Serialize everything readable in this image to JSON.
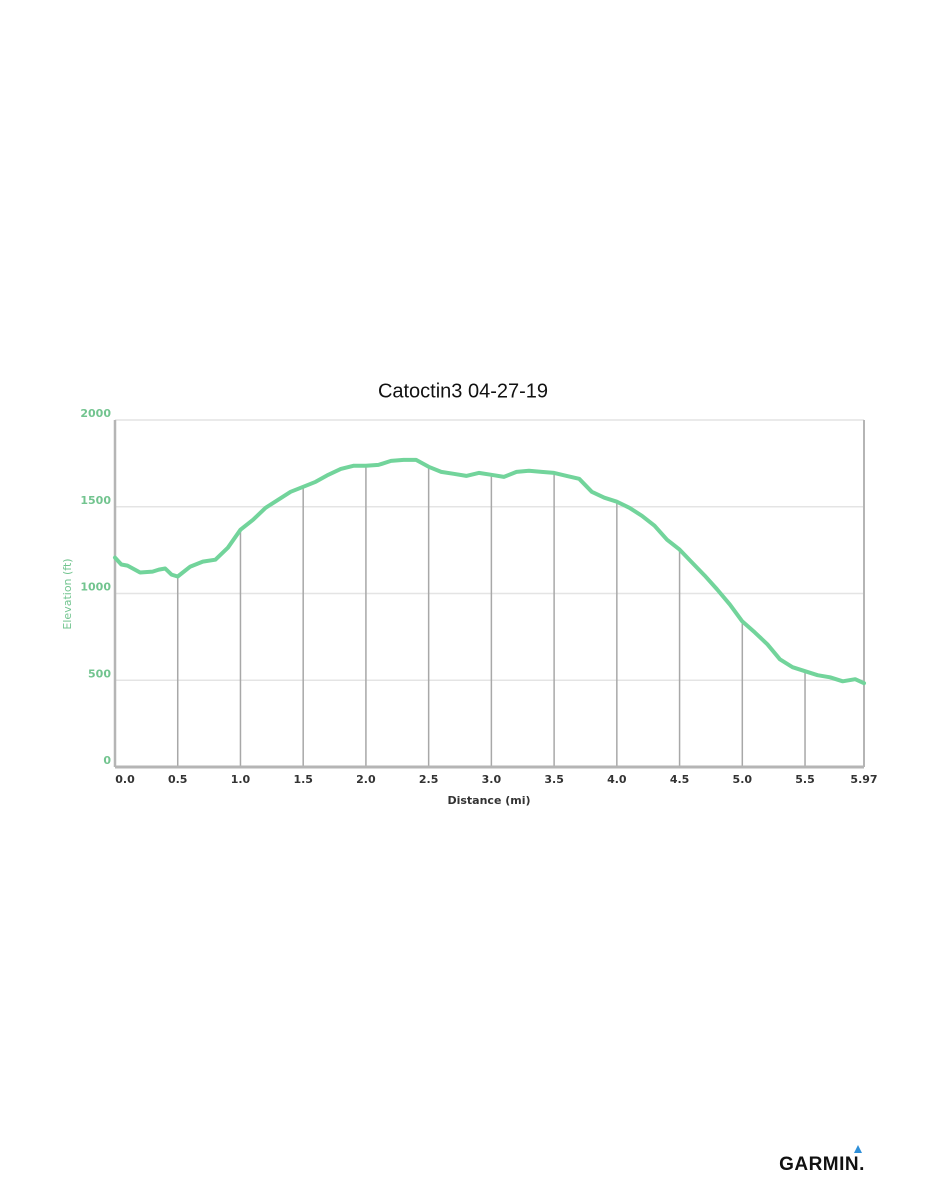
{
  "chart_data": {
    "type": "line",
    "title": "Catoctin3 04-27-19",
    "x_label": "Distance (mi)",
    "y_label": "Elevation (ft)",
    "x": [
      0,
      0.05,
      0.1,
      0.2,
      0.3,
      0.35,
      0.4,
      0.45,
      0.5,
      0.6,
      0.7,
      0.8,
      0.9,
      1.0,
      1.1,
      1.2,
      1.3,
      1.4,
      1.5,
      1.6,
      1.7,
      1.8,
      1.9,
      2.0,
      2.1,
      2.2,
      2.3,
      2.4,
      2.5,
      2.6,
      2.7,
      2.8,
      2.9,
      3.0,
      3.1,
      3.2,
      3.3,
      3.4,
      3.5,
      3.6,
      3.7,
      3.8,
      3.9,
      4.0,
      4.1,
      4.2,
      4.3,
      4.4,
      4.5,
      4.6,
      4.7,
      4.8,
      4.9,
      5.0,
      5.1,
      5.2,
      5.3,
      5.4,
      5.5,
      5.6,
      5.7,
      5.8,
      5.9,
      5.97
    ],
    "values": [
      1207,
      1167,
      1161,
      1121,
      1126,
      1138,
      1144,
      1109,
      1098,
      1155,
      1184,
      1195,
      1264,
      1368,
      1425,
      1494,
      1540,
      1586,
      1615,
      1644,
      1684,
      1718,
      1736,
      1736,
      1741,
      1764,
      1770,
      1770,
      1730,
      1701,
      1690,
      1678,
      1695,
      1684,
      1672,
      1701,
      1707,
      1701,
      1695,
      1678,
      1661,
      1586,
      1552,
      1529,
      1494,
      1448,
      1391,
      1310,
      1253,
      1178,
      1103,
      1023,
      937,
      839,
      776,
      707,
      621,
      575,
      552,
      529,
      517,
      494,
      506,
      483
    ],
    "color": "#72d49b",
    "xlim": [
      0,
      5.97
    ],
    "xticks": [
      {
        "value": 0,
        "label": "0.0"
      },
      0.5,
      {
        "value": 1,
        "label": "1.0"
      },
      1.5,
      {
        "value": 2,
        "label": "2.0"
      },
      2.5,
      {
        "value": 3,
        "label": "3.0"
      },
      3.5,
      {
        "value": 4,
        "label": "4.0"
      },
      4.5,
      {
        "value": 5,
        "label": "5.0"
      },
      5.5,
      5.97
    ],
    "ylim": [
      0,
      2000
    ],
    "yticks": [
      0,
      500,
      1000,
      1500,
      2000
    ],
    "grid": true
  },
  "footer": {
    "brand": "GARMIN."
  }
}
